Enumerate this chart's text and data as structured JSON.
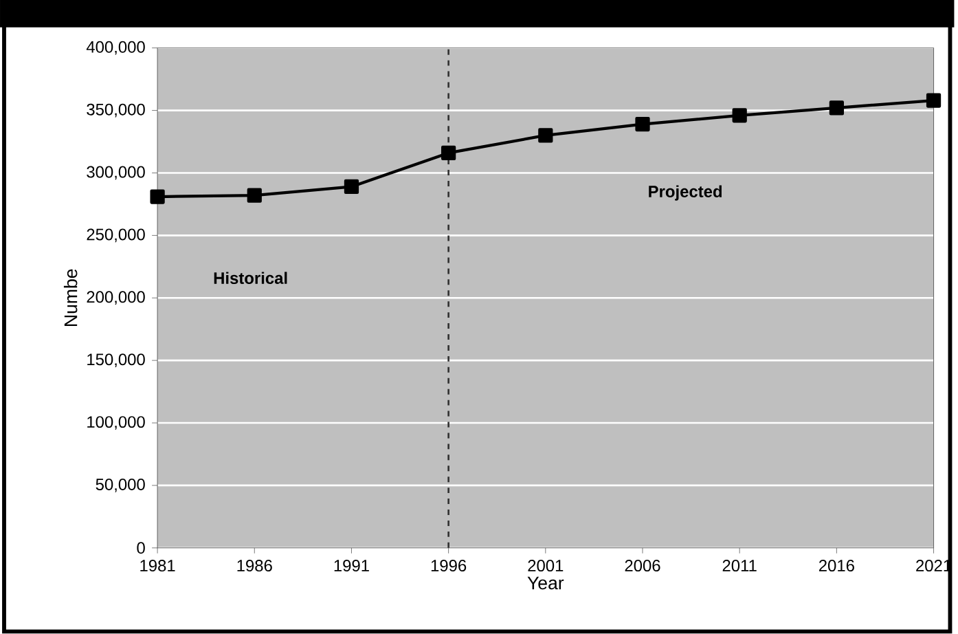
{
  "chart_data": {
    "type": "line",
    "xlabel": "Year",
    "ylabel": "Numbe",
    "x": [
      1981,
      1986,
      1991,
      1996,
      2001,
      2006,
      2011,
      2016,
      2021
    ],
    "series": [
      {
        "color": "#000000",
        "values": [
          281000,
          282000,
          289000,
          316000,
          330000,
          339000,
          346000,
          352000,
          358000
        ]
      }
    ],
    "xlim": [
      1981,
      2021
    ],
    "xticks": [
      1981,
      1986,
      1991,
      1996,
      2001,
      2006,
      2011,
      2016,
      2021
    ],
    "ylim": [
      0,
      400000
    ],
    "yticks": [
      0,
      {
        "value": 50000,
        "label": "50,000"
      },
      {
        "value": 100000,
        "label": "100,000"
      },
      {
        "value": 150000,
        "label": "150,000"
      },
      {
        "value": 200000,
        "label": "200,000"
      },
      {
        "value": 250000,
        "label": "250,000"
      },
      {
        "value": 300000,
        "label": "300,000"
      },
      {
        "value": 350000,
        "label": "350,000"
      },
      {
        "value": 400000,
        "label": "400,000"
      }
    ],
    "grid": "y",
    "marker": "square",
    "line_style": "solid",
    "ref_lines": [
      {
        "axis": "x",
        "value": 1996,
        "label": null,
        "color": "#333333",
        "line_style": "dashed"
      }
    ],
    "annotations": [
      "Historical",
      "Projected"
    ]
  }
}
